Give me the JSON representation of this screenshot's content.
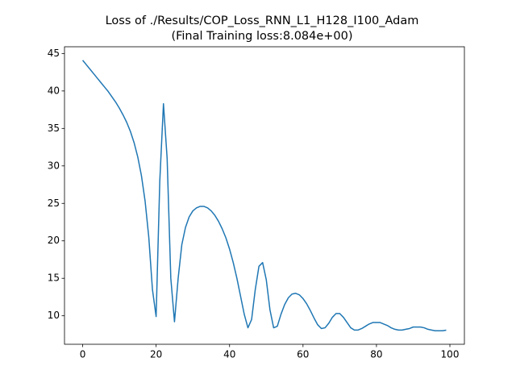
{
  "chart_data": {
    "type": "line",
    "title": "Loss of ./Results/COP_Loss_RNN_L1_H128_I100_Adam",
    "subtitle": "(Final Training loss:8.084e+00)",
    "x": [
      0,
      1,
      2,
      3,
      4,
      5,
      6,
      7,
      8,
      9,
      10,
      11,
      12,
      13,
      14,
      15,
      16,
      17,
      18,
      19,
      20,
      21,
      22,
      23,
      24,
      25,
      26,
      27,
      28,
      29,
      30,
      31,
      32,
      33,
      34,
      35,
      36,
      37,
      38,
      39,
      40,
      41,
      42,
      43,
      44,
      45,
      46,
      47,
      48,
      49,
      50,
      51,
      52,
      53,
      54,
      55,
      56,
      57,
      58,
      59,
      60,
      61,
      62,
      63,
      64,
      65,
      66,
      67,
      68,
      69,
      70,
      71,
      72,
      73,
      74,
      75,
      76,
      77,
      78,
      79,
      80,
      81,
      82,
      83,
      84,
      85,
      86,
      87,
      88,
      89,
      90,
      91,
      92,
      93,
      94,
      95,
      96,
      97,
      98,
      99
    ],
    "series": [
      {
        "name": "loss",
        "color": "#1f77b4",
        "values": [
          44.1,
          43.5,
          42.9,
          42.3,
          41.7,
          41.1,
          40.5,
          39.9,
          39.2,
          38.5,
          37.7,
          36.8,
          35.8,
          34.6,
          33.1,
          31.2,
          28.7,
          25.3,
          20.5,
          13.5,
          9.9,
          28,
          38.3,
          31,
          15,
          9.2,
          15,
          19.5,
          21.8,
          23.2,
          24,
          24.4,
          24.6,
          24.6,
          24.4,
          24,
          23.4,
          22.6,
          21.6,
          20.4,
          18.9,
          17.1,
          15,
          12.6,
          10.2,
          8.4,
          9.5,
          13.5,
          16.6,
          17.1,
          14.8,
          10.8,
          8.4,
          8.6,
          10.2,
          11.5,
          12.4,
          12.9,
          13,
          12.8,
          12.3,
          11.6,
          10.7,
          9.7,
          8.8,
          8.3,
          8.4,
          9,
          9.8,
          10.3,
          10.3,
          9.8,
          9.1,
          8.4,
          8.1,
          8.1,
          8.3,
          8.6,
          8.9,
          9.1,
          9.1,
          9.1,
          8.9,
          8.7,
          8.4,
          8.2,
          8.1,
          8.1,
          8.2,
          8.3,
          8.5,
          8.5,
          8.5,
          8.4,
          8.2,
          8.1,
          8,
          8,
          8,
          8.084
        ]
      }
    ],
    "xlim": [
      -4.95,
      103.95
    ],
    "xticks": [
      0,
      20,
      40,
      60,
      80,
      100
    ],
    "ylim": [
      6.2,
      45.9
    ],
    "yticks": [
      10,
      15,
      20,
      25,
      30,
      35,
      40,
      45
    ]
  }
}
